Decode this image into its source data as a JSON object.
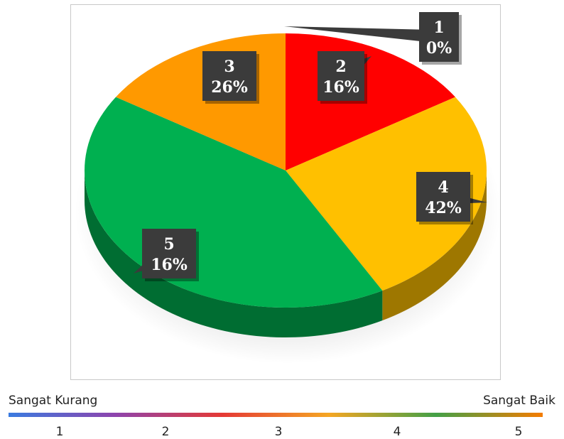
{
  "chart_data": {
    "type": "pie",
    "categories": [
      "1",
      "2",
      "3",
      "4",
      "5"
    ],
    "values": [
      0,
      16,
      26,
      42,
      16
    ],
    "percent_labels": [
      "0%",
      "16%",
      "26%",
      "42%",
      "16%"
    ],
    "colors": [
      "#1f4e9c",
      "#ff0000",
      "#ffc000",
      "#00b050",
      "#ff9900"
    ],
    "style": "3d-pie",
    "legend": "none"
  },
  "scale": {
    "left_label": "Sangat Kurang",
    "right_label": "Sangat Baik",
    "ticks": [
      "1",
      "2",
      "3",
      "4",
      "5"
    ],
    "gradient_colors": [
      "#3a7be0",
      "#8e44ad",
      "#e53935",
      "#f5a623",
      "#43a047",
      "#f57c00"
    ]
  }
}
